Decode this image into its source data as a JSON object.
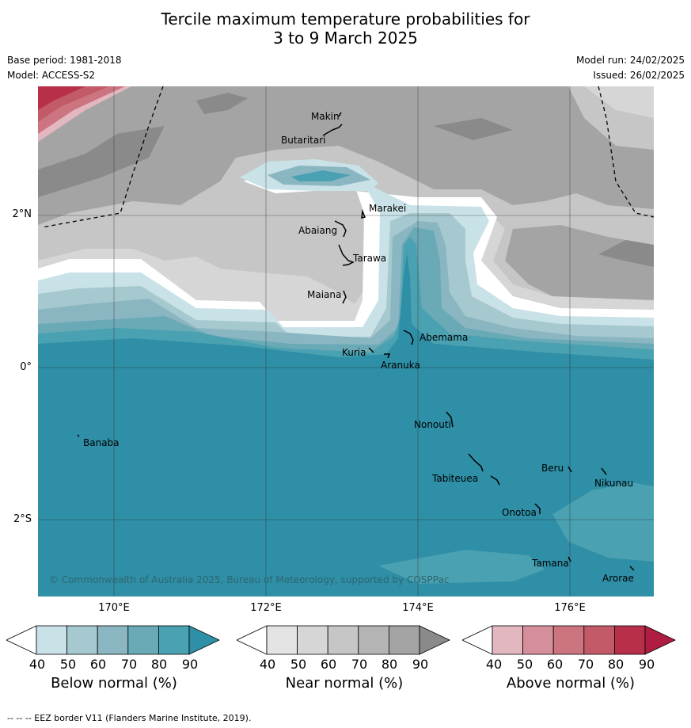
{
  "title_line1": "Tercile maximum temperature probabilities for",
  "title_line2": "3 to 9 March 2025",
  "base_period": "Base period: 1981-2018",
  "model": "Model: ACCESS-S2",
  "model_run": "Model run: 24/02/2025",
  "issued": "Issued: 26/02/2025",
  "longitude_labels": [
    "170°E",
    "172°E",
    "174°E",
    "176°E"
  ],
  "latitude_labels": [
    "2°N",
    "0°",
    "2°S"
  ],
  "places": [
    "Makin",
    "Butaritari",
    "Marakei",
    "Abaiang",
    "Tarawa",
    "Maiana",
    "Abemama",
    "Kuria",
    "Aranuka",
    "Banaba",
    "Nonouti",
    "Beru",
    "Nikunau",
    "Tabiteuea",
    "Onotoa",
    "Tamana",
    "Arorae"
  ],
  "copyright": "© Commonwealth of Australia 2025, Bureau of Meteorology, supported by COSPPac",
  "colorbars": [
    {
      "title": "Below normal (%)",
      "ticks": [
        "40",
        "50",
        "60",
        "70",
        "80",
        "90"
      ],
      "colors": [
        "#ffffff",
        "#c9e2e8",
        "#a6c9cf",
        "#8ab6c2",
        "#6aaab6",
        "#4aa1b1",
        "#2e8fa6"
      ]
    },
    {
      "title": "Near normal (%)",
      "ticks": [
        "40",
        "50",
        "60",
        "70",
        "80",
        "90"
      ],
      "colors": [
        "#ffffff",
        "#e4e4e4",
        "#d6d6d6",
        "#c6c6c6",
        "#b4b4b4",
        "#a4a4a4",
        "#8a8a8a"
      ]
    },
    {
      "title": "Above normal (%)",
      "ticks": [
        "40",
        "50",
        "60",
        "70",
        "80",
        "90"
      ],
      "colors": [
        "#ffffff",
        "#e3b7c0",
        "#d58f9a",
        "#cc7580",
        "#c35a68",
        "#b82f4a",
        "#b01d42"
      ]
    }
  ],
  "footer": "--  --  -- EEZ border V11 (Flanders Marine Institute, 2019)."
}
